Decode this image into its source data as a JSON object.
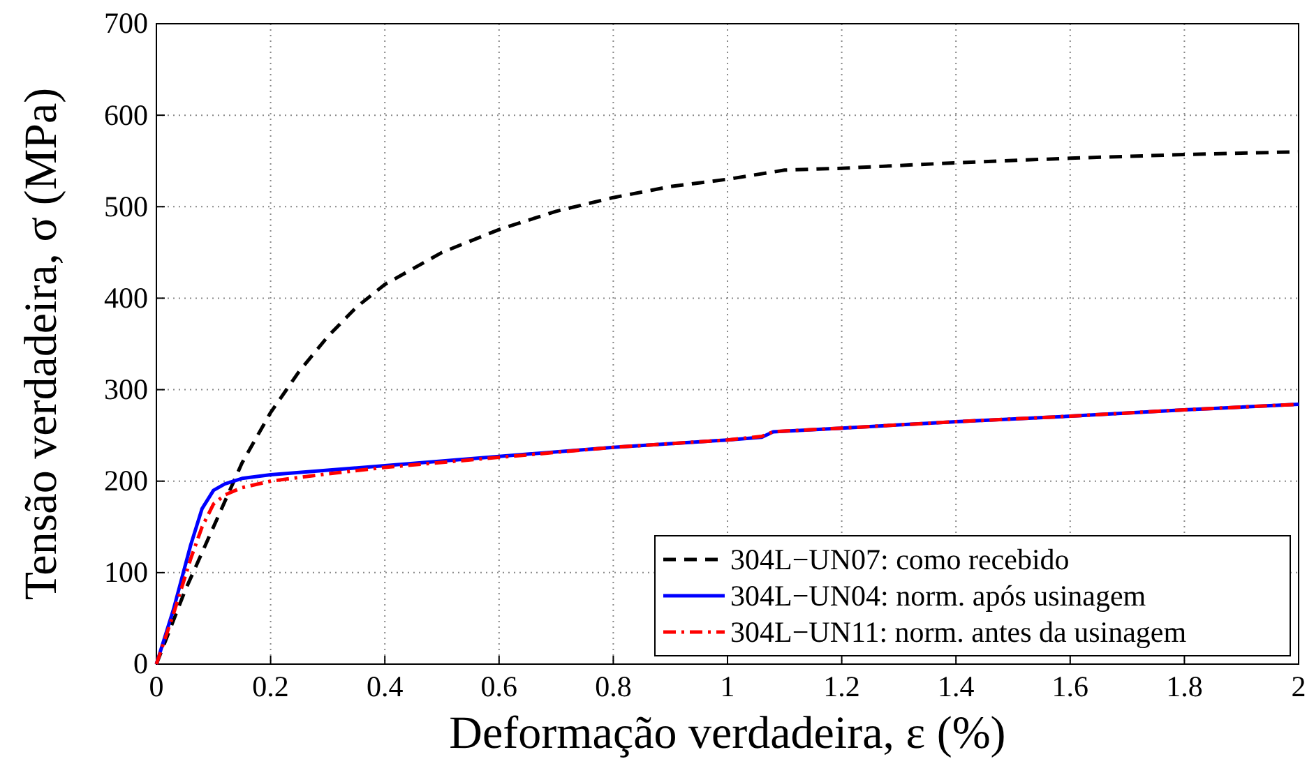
{
  "chart_data": {
    "type": "line",
    "xlabel": "Deformação verdadeira, ε (%)",
    "ylabel": "Tensão verdadeira, σ (MPa)",
    "xlim": [
      0,
      2
    ],
    "ylim": [
      0,
      700
    ],
    "xticks": [
      0,
      0.2,
      0.4,
      0.6,
      0.8,
      1,
      1.2,
      1.4,
      1.6,
      1.8,
      2
    ],
    "yticks": [
      0,
      100,
      200,
      300,
      400,
      500,
      600,
      700
    ],
    "grid": true,
    "legend": "bottom right",
    "marker": "none",
    "series": [
      {
        "name": "304L−UN07: como recebido",
        "color": "#000000",
        "line_style": "dashed",
        "x": [
          0,
          0.05,
          0.1,
          0.15,
          0.2,
          0.25,
          0.3,
          0.35,
          0.4,
          0.5,
          0.6,
          0.7,
          0.8,
          0.9,
          1.0,
          1.05,
          1.1,
          1.2,
          1.4,
          1.6,
          1.8,
          2.0
        ],
        "values": [
          0,
          80,
          150,
          220,
          275,
          320,
          358,
          390,
          415,
          450,
          475,
          495,
          510,
          522,
          530,
          535,
          540,
          542,
          548,
          553,
          557,
          560
        ]
      },
      {
        "name": "304L−UN04: norm. após usinagem",
        "color": "#0000ff",
        "line_style": "solid",
        "x": [
          0,
          0.03,
          0.06,
          0.08,
          0.1,
          0.12,
          0.15,
          0.2,
          0.3,
          0.4,
          0.6,
          0.8,
          1.0,
          1.06,
          1.08,
          1.2,
          1.4,
          1.6,
          1.8,
          2.0
        ],
        "values": [
          0,
          60,
          130,
          170,
          190,
          197,
          203,
          207,
          212,
          217,
          227,
          237,
          245,
          248,
          254,
          258,
          265,
          271,
          278,
          284
        ]
      },
      {
        "name": "304L−UN11: norm. antes da usinagem",
        "color": "#ff0000",
        "line_style": "dashdot",
        "x": [
          0,
          0.03,
          0.06,
          0.08,
          0.1,
          0.12,
          0.15,
          0.2,
          0.3,
          0.4,
          0.6,
          0.8,
          1.0,
          1.06,
          1.08,
          1.2,
          1.4,
          1.6,
          1.8,
          2.0
        ],
        "values": [
          0,
          55,
          115,
          150,
          175,
          185,
          193,
          200,
          208,
          215,
          226,
          237,
          245,
          249,
          254,
          258,
          265,
          271,
          278,
          284
        ]
      }
    ]
  }
}
